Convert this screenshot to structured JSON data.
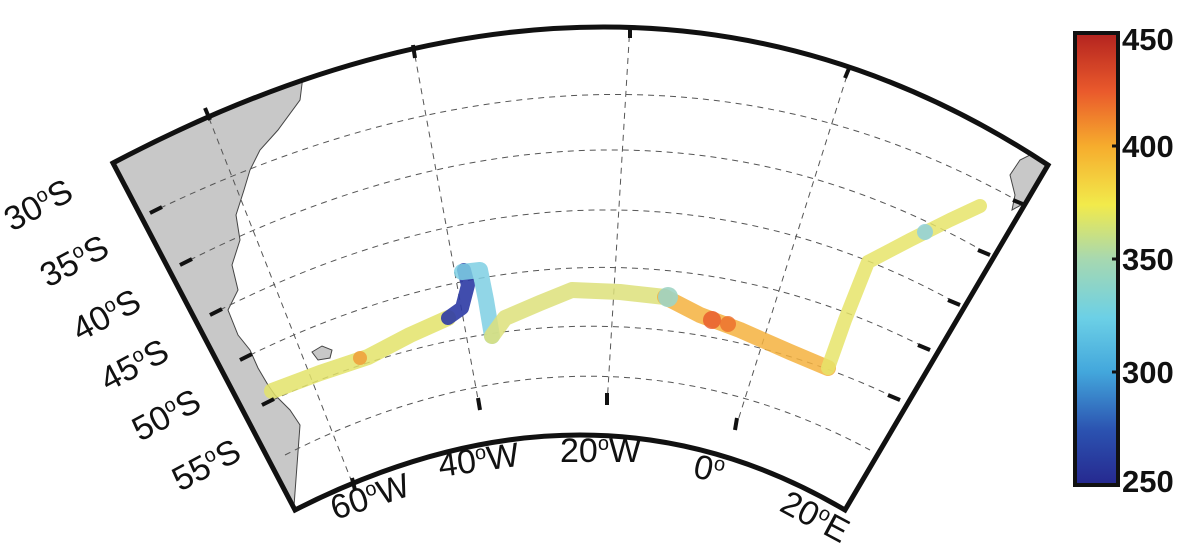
{
  "map": {
    "projection": "conic sector",
    "lat_range": [
      "55°S",
      "30°S"
    ],
    "lon_range": [
      "70°W",
      "20°E"
    ],
    "land_color": "#c8c8c8",
    "grid": "dashed",
    "lat_labels": [
      {
        "deg": "30",
        "hemi": "S"
      },
      {
        "deg": "35",
        "hemi": "S"
      },
      {
        "deg": "40",
        "hemi": "S"
      },
      {
        "deg": "45",
        "hemi": "S"
      },
      {
        "deg": "50",
        "hemi": "S"
      },
      {
        "deg": "55",
        "hemi": "S"
      }
    ],
    "lon_labels": [
      {
        "deg": "60",
        "hemi": "W"
      },
      {
        "deg": "40",
        "hemi": "W"
      },
      {
        "deg": "20",
        "hemi": "W"
      },
      {
        "deg": "0",
        "hemi": ""
      },
      {
        "deg": "20",
        "hemi": "E"
      }
    ]
  },
  "colorbar": {
    "min": 250,
    "max": 450,
    "ticks": [
      "450",
      "400",
      "350",
      "300",
      "250"
    ],
    "colormap": "jet"
  },
  "track": {
    "description_values_by_segment": [
      {
        "from": "South America (~52°S, 68°W)",
        "to": "~45°S, 42°W",
        "value_approx": 360
      },
      {
        "segment": "near 42°W dip",
        "value_approx": 270
      },
      {
        "segment": "near 40°W loop",
        "value_approx": 320
      },
      {
        "segment": "mid-Atlantic ~38°S",
        "value_approx": 355
      },
      {
        "segment": "near 0° ~43°S",
        "value_approx": 400
      },
      {
        "segment": "near 20°E ~45°S",
        "value_approx": 370
      },
      {
        "segment": "towards Africa ~35°S",
        "value_approx": 340
      }
    ]
  }
}
